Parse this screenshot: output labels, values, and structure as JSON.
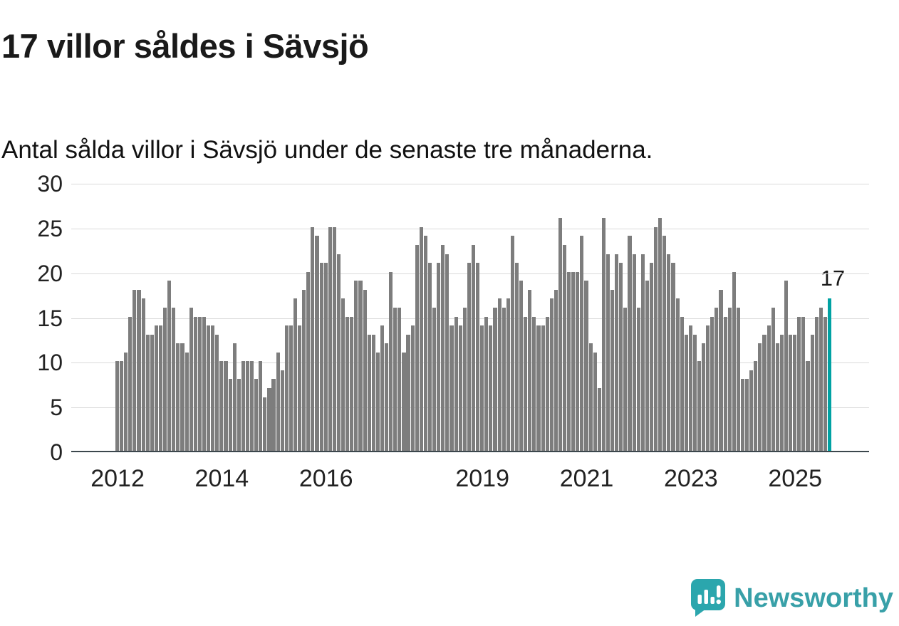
{
  "header": {
    "title": "17 villor såldes i Sävsjö",
    "subtitle": "Antal sålda villor i Sävsjö under de senaste tre månaderna."
  },
  "chart_data": {
    "type": "bar",
    "title": "17 villor såldes i Sävsjö",
    "subtitle": "Antal sålda villor i Sävsjö under de senaste tre månaderna.",
    "unit": "sålda villor (rullande 3 månader)",
    "x_start": "2012-01",
    "x_interval": "month",
    "ylim": [
      0,
      30
    ],
    "yticks": [
      0,
      5,
      10,
      15,
      20,
      25,
      30
    ],
    "grid": "horizontal",
    "bar_color": "#7d7d7d",
    "highlight_color": "#00a2a3",
    "highlight_last": true,
    "last_value_label": "17",
    "xticks": [
      {
        "label": "2012",
        "month_index": 0
      },
      {
        "label": "2014",
        "month_index": 24
      },
      {
        "label": "2016",
        "month_index": 48
      },
      {
        "label": "2019",
        "month_index": 84
      },
      {
        "label": "2021",
        "month_index": 108
      },
      {
        "label": "2023",
        "month_index": 132
      },
      {
        "label": "2025",
        "month_index": 156
      }
    ],
    "values": [
      10,
      10,
      11,
      15,
      18,
      18,
      17,
      13,
      13,
      14,
      14,
      16,
      19,
      16,
      12,
      12,
      11,
      16,
      15,
      15,
      15,
      14,
      14,
      13,
      10,
      10,
      8,
      12,
      8,
      10,
      10,
      10,
      8,
      10,
      6,
      7,
      8,
      11,
      9,
      14,
      14,
      17,
      14,
      18,
      20,
      25,
      24,
      21,
      21,
      25,
      25,
      22,
      17,
      15,
      15,
      19,
      19,
      18,
      13,
      13,
      11,
      14,
      12,
      20,
      16,
      16,
      11,
      13,
      14,
      23,
      25,
      24,
      21,
      16,
      21,
      23,
      22,
      14,
      15,
      14,
      16,
      21,
      23,
      21,
      14,
      15,
      14,
      16,
      17,
      16,
      17,
      24,
      21,
      19,
      15,
      18,
      15,
      14,
      14,
      15,
      17,
      18,
      26,
      23,
      20,
      20,
      20,
      24,
      19,
      12,
      11,
      7,
      26,
      22,
      18,
      22,
      21,
      16,
      24,
      22,
      16,
      22,
      19,
      21,
      25,
      26,
      24,
      22,
      21,
      17,
      15,
      13,
      14,
      13,
      10,
      12,
      14,
      15,
      16,
      18,
      15,
      16,
      20,
      16,
      8,
      8,
      9,
      10,
      12,
      13,
      14,
      16,
      12,
      13,
      19,
      13,
      13,
      15,
      15,
      10,
      13,
      15,
      16,
      15,
      17
    ]
  },
  "footer": {
    "brand": "Newsworthy",
    "brand_color": "#38a0a8",
    "logo_color": "#2ba6ad"
  }
}
